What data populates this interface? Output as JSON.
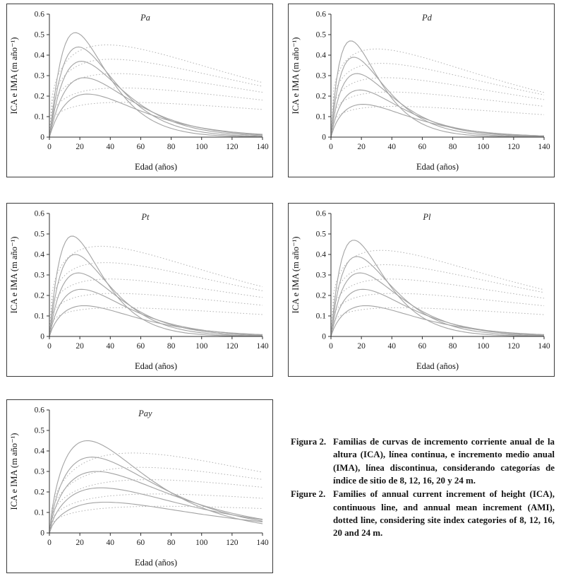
{
  "figure": {
    "caption_es_label": "Figura 2.",
    "caption_es": "Familias de curvas de incremento corriente anual de la altura (ICA), línea continua, e incremento medio anual (IMA), línea discontinua, considerando categorías de índice de sitio de 8, 12, 16, 20 y 24 m.",
    "caption_en_label": "Figure 2.",
    "caption_en": "Families of annual current increment of height (ICA), continuous line, and annual mean increment (AMI), dotted line, considering site index categories of 8, 12, 16, 20 and 24 m."
  },
  "colors": {
    "axis": "#2e2e2e",
    "curve_solid": "#a3a3a3",
    "curve_dotted": "#b5b5b5"
  },
  "site_index_categories": [
    8,
    12,
    16,
    20,
    24
  ],
  "chart_data": [
    {
      "type": "line",
      "title": "Pa",
      "xlabel": "Edad (años)",
      "ylabel": "ICA e IMA (m año⁻¹)",
      "xlim": [
        0,
        140
      ],
      "ylim": [
        0,
        0.6
      ],
      "x_ticks": [
        0,
        20,
        40,
        60,
        80,
        100,
        120,
        140
      ],
      "y_ticks": [
        0,
        0.1,
        0.2,
        0.3,
        0.4,
        0.5,
        0.6
      ],
      "legend": "solid = ICA, dotted = IMA",
      "series": [
        {
          "name": "ICA IS24",
          "style": "solid",
          "peak_y": 0.51,
          "peak_x": 17,
          "shape": 1.15
        },
        {
          "name": "ICA IS20",
          "style": "solid",
          "peak_y": 0.44,
          "peak_x": 19,
          "shape": 1.1
        },
        {
          "name": "ICA IS16",
          "style": "solid",
          "peak_y": 0.37,
          "peak_x": 21,
          "shape": 1.05
        },
        {
          "name": "ICA IS12",
          "style": "solid",
          "peak_y": 0.29,
          "peak_x": 23,
          "shape": 1.0
        },
        {
          "name": "ICA IS8",
          "style": "solid",
          "peak_y": 0.21,
          "peak_x": 25,
          "shape": 0.95
        },
        {
          "name": "IMA IS24",
          "style": "dotted",
          "peak_y": 0.45,
          "peak_x": 38,
          "shape": 0.38
        },
        {
          "name": "IMA IS20",
          "style": "dotted",
          "peak_y": 0.38,
          "peak_x": 41,
          "shape": 0.36
        },
        {
          "name": "IMA IS16",
          "style": "dotted",
          "peak_y": 0.31,
          "peak_x": 44,
          "shape": 0.34
        },
        {
          "name": "IMA IS12",
          "style": "dotted",
          "peak_y": 0.24,
          "peak_x": 47,
          "shape": 0.32
        },
        {
          "name": "IMA IS8",
          "style": "dotted",
          "peak_y": 0.17,
          "peak_x": 50,
          "shape": 0.3
        }
      ]
    },
    {
      "type": "line",
      "title": "Pd",
      "xlabel": "Edad (años)",
      "ylabel": "ICA e IMA (m año⁻¹)",
      "xlim": [
        0,
        140
      ],
      "ylim": [
        0,
        0.6
      ],
      "x_ticks": [
        0,
        20,
        40,
        60,
        80,
        100,
        120,
        140
      ],
      "y_ticks": [
        0,
        0.1,
        0.2,
        0.3,
        0.4,
        0.5,
        0.6
      ],
      "legend": "solid = ICA, dotted = IMA",
      "series": [
        {
          "name": "ICA IS24",
          "style": "solid",
          "peak_y": 0.47,
          "peak_x": 13,
          "shape": 0.95
        },
        {
          "name": "ICA IS20",
          "style": "solid",
          "peak_y": 0.39,
          "peak_x": 15,
          "shape": 0.92
        },
        {
          "name": "ICA IS16",
          "style": "solid",
          "peak_y": 0.31,
          "peak_x": 17,
          "shape": 0.9
        },
        {
          "name": "ICA IS12",
          "style": "solid",
          "peak_y": 0.23,
          "peak_x": 19,
          "shape": 0.88
        },
        {
          "name": "ICA IS8",
          "style": "solid",
          "peak_y": 0.16,
          "peak_x": 21,
          "shape": 0.85
        },
        {
          "name": "IMA IS24",
          "style": "dotted",
          "peak_y": 0.43,
          "peak_x": 30,
          "shape": 0.32
        },
        {
          "name": "IMA IS20",
          "style": "dotted",
          "peak_y": 0.36,
          "peak_x": 33,
          "shape": 0.31
        },
        {
          "name": "IMA IS16",
          "style": "dotted",
          "peak_y": 0.29,
          "peak_x": 36,
          "shape": 0.3
        },
        {
          "name": "IMA IS12",
          "style": "dotted",
          "peak_y": 0.22,
          "peak_x": 39,
          "shape": 0.29
        },
        {
          "name": "IMA IS8",
          "style": "dotted",
          "peak_y": 0.15,
          "peak_x": 42,
          "shape": 0.28
        }
      ]
    },
    {
      "type": "line",
      "title": "Pt",
      "xlabel": "Edad (años)",
      "ylabel": "ICA e IMA (m año⁻¹)",
      "xlim": [
        0,
        140
      ],
      "ylim": [
        0,
        0.6
      ],
      "x_ticks": [
        0,
        20,
        40,
        60,
        80,
        100,
        120,
        140
      ],
      "y_ticks": [
        0,
        0.1,
        0.2,
        0.3,
        0.4,
        0.5,
        0.6
      ],
      "legend": "solid = ICA, dotted = IMA",
      "series": [
        {
          "name": "ICA IS24",
          "style": "solid",
          "peak_y": 0.49,
          "peak_x": 15,
          "shape": 1.05
        },
        {
          "name": "ICA IS20",
          "style": "solid",
          "peak_y": 0.4,
          "peak_x": 17,
          "shape": 1.0
        },
        {
          "name": "ICA IS16",
          "style": "solid",
          "peak_y": 0.31,
          "peak_x": 19,
          "shape": 0.95
        },
        {
          "name": "ICA IS12",
          "style": "solid",
          "peak_y": 0.23,
          "peak_x": 21,
          "shape": 0.9
        },
        {
          "name": "ICA IS8",
          "style": "solid",
          "peak_y": 0.15,
          "peak_x": 23,
          "shape": 0.85
        },
        {
          "name": "IMA IS24",
          "style": "dotted",
          "peak_y": 0.44,
          "peak_x": 34,
          "shape": 0.35
        },
        {
          "name": "IMA IS20",
          "style": "dotted",
          "peak_y": 0.36,
          "peak_x": 37,
          "shape": 0.33
        },
        {
          "name": "IMA IS16",
          "style": "dotted",
          "peak_y": 0.28,
          "peak_x": 40,
          "shape": 0.31
        },
        {
          "name": "IMA IS12",
          "style": "dotted",
          "peak_y": 0.21,
          "peak_x": 43,
          "shape": 0.3
        },
        {
          "name": "IMA IS8",
          "style": "dotted",
          "peak_y": 0.14,
          "peak_x": 46,
          "shape": 0.29
        }
      ]
    },
    {
      "type": "line",
      "title": "Pl",
      "xlabel": "Edad (años)",
      "ylabel": "ICA e IMA (m año⁻¹)",
      "xlim": [
        0,
        140
      ],
      "ylim": [
        0,
        0.6
      ],
      "x_ticks": [
        0,
        20,
        40,
        60,
        80,
        100,
        120,
        140
      ],
      "y_ticks": [
        0,
        0.1,
        0.2,
        0.3,
        0.4,
        0.5,
        0.6
      ],
      "legend": "solid = ICA, dotted = IMA",
      "series": [
        {
          "name": "ICA IS24",
          "style": "solid",
          "peak_y": 0.47,
          "peak_x": 15,
          "shape": 1.0
        },
        {
          "name": "ICA IS20",
          "style": "solid",
          "peak_y": 0.39,
          "peak_x": 17,
          "shape": 0.95
        },
        {
          "name": "ICA IS16",
          "style": "solid",
          "peak_y": 0.31,
          "peak_x": 19,
          "shape": 0.92
        },
        {
          "name": "ICA IS12",
          "style": "solid",
          "peak_y": 0.23,
          "peak_x": 21,
          "shape": 0.9
        },
        {
          "name": "ICA IS8",
          "style": "solid",
          "peak_y": 0.15,
          "peak_x": 23,
          "shape": 0.85
        },
        {
          "name": "IMA IS24",
          "style": "dotted",
          "peak_y": 0.42,
          "peak_x": 33,
          "shape": 0.34
        },
        {
          "name": "IMA IS20",
          "style": "dotted",
          "peak_y": 0.35,
          "peak_x": 36,
          "shape": 0.32
        },
        {
          "name": "IMA IS16",
          "style": "dotted",
          "peak_y": 0.28,
          "peak_x": 39,
          "shape": 0.31
        },
        {
          "name": "IMA IS12",
          "style": "dotted",
          "peak_y": 0.21,
          "peak_x": 42,
          "shape": 0.3
        },
        {
          "name": "IMA IS8",
          "style": "dotted",
          "peak_y": 0.14,
          "peak_x": 45,
          "shape": 0.28
        }
      ]
    },
    {
      "type": "line",
      "title": "Pay",
      "xlabel": "Edad (años)",
      "ylabel": "ICA e IMA (m año⁻¹)",
      "xlim": [
        0,
        140
      ],
      "ylim": [
        0,
        0.6
      ],
      "x_ticks": [
        0,
        20,
        40,
        60,
        80,
        100,
        120,
        140
      ],
      "y_ticks": [
        0,
        0.1,
        0.2,
        0.3,
        0.4,
        0.5,
        0.6
      ],
      "legend": "solid = ICA, dotted = IMA",
      "series": [
        {
          "name": "ICA IS24",
          "style": "solid",
          "peak_y": 0.45,
          "peak_x": 25,
          "shape": 0.8
        },
        {
          "name": "ICA IS20",
          "style": "solid",
          "peak_y": 0.37,
          "peak_x": 28,
          "shape": 0.78
        },
        {
          "name": "ICA IS16",
          "style": "solid",
          "peak_y": 0.3,
          "peak_x": 31,
          "shape": 0.75
        },
        {
          "name": "ICA IS12",
          "style": "solid",
          "peak_y": 0.22,
          "peak_x": 34,
          "shape": 0.72
        },
        {
          "name": "ICA IS8",
          "style": "solid",
          "peak_y": 0.15,
          "peak_x": 37,
          "shape": 0.7
        },
        {
          "name": "IMA IS24",
          "style": "dotted",
          "peak_y": 0.39,
          "peak_x": 55,
          "shape": 0.45
        },
        {
          "name": "IMA IS20",
          "style": "dotted",
          "peak_y": 0.32,
          "peak_x": 60,
          "shape": 0.42
        },
        {
          "name": "IMA IS16",
          "style": "dotted",
          "peak_y": 0.26,
          "peak_x": 65,
          "shape": 0.4
        },
        {
          "name": "IMA IS12",
          "style": "dotted",
          "peak_y": 0.19,
          "peak_x": 70,
          "shape": 0.38
        },
        {
          "name": "IMA IS8",
          "style": "dotted",
          "peak_y": 0.13,
          "peak_x": 75,
          "shape": 0.36
        }
      ]
    }
  ]
}
